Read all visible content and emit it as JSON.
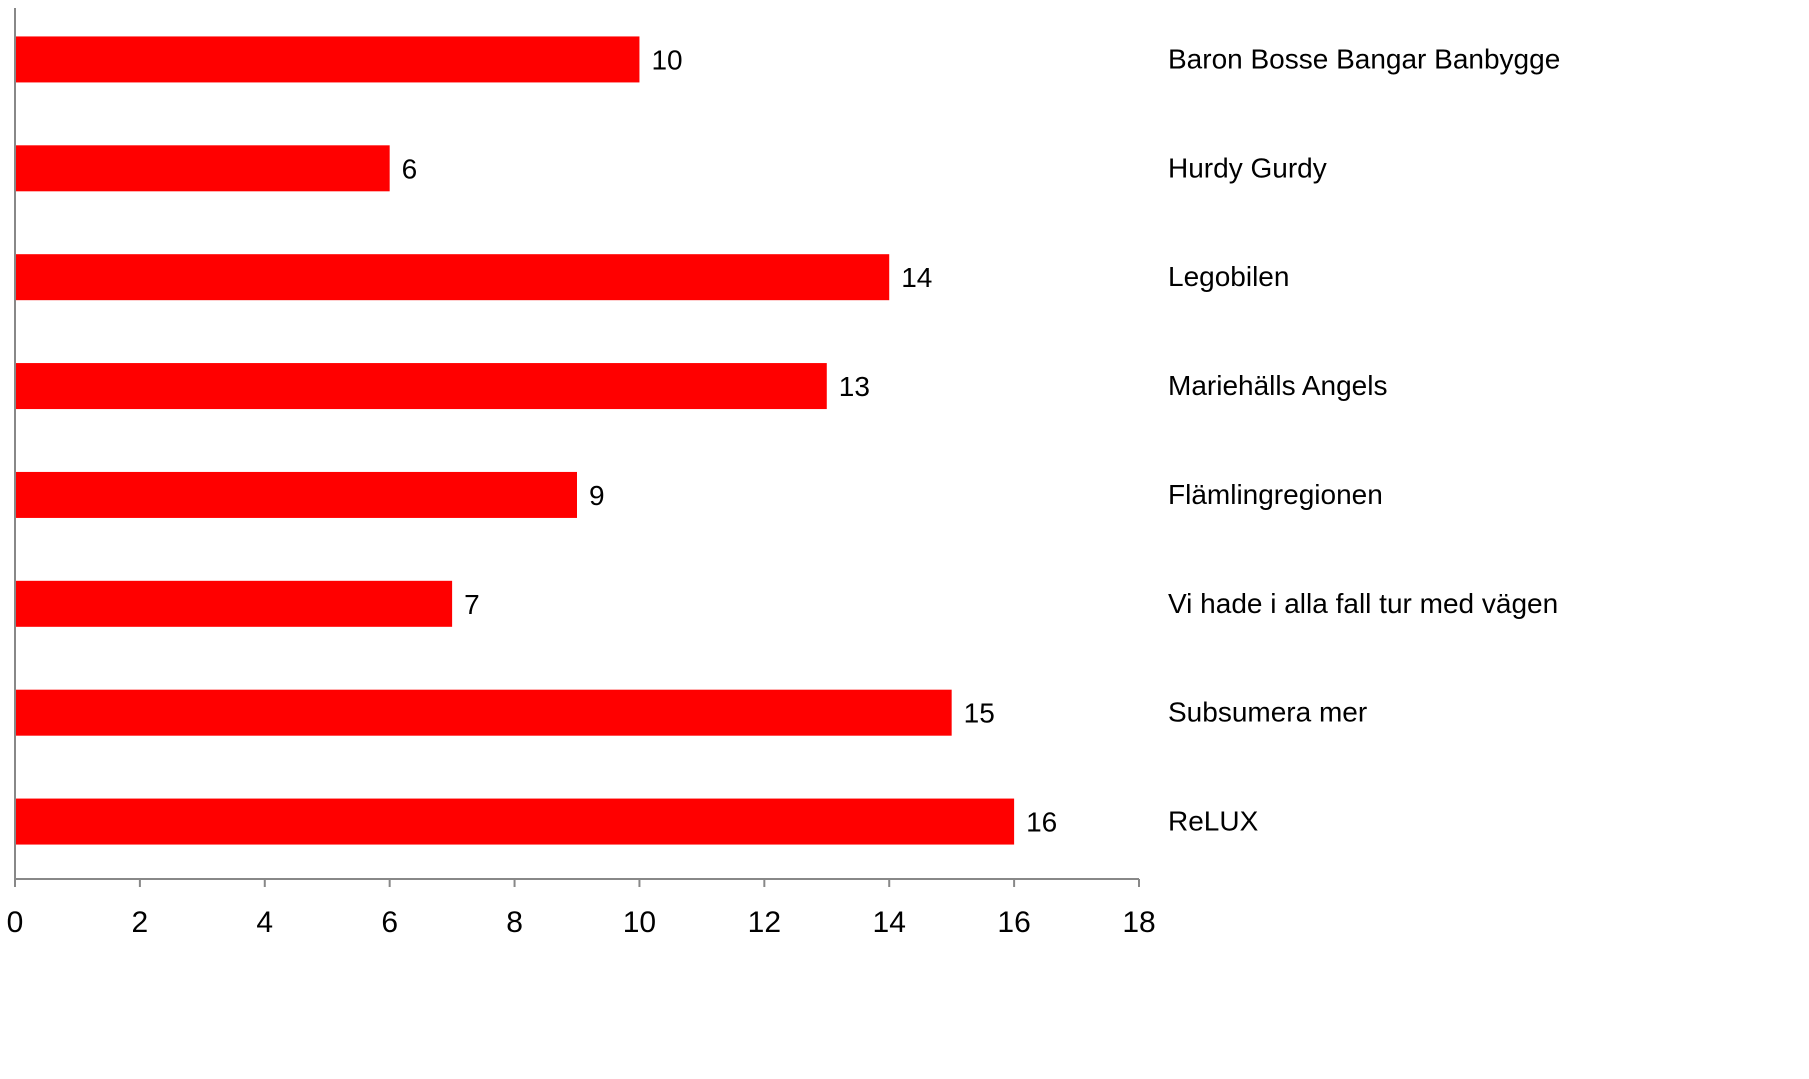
{
  "chart_data": {
    "type": "bar",
    "orientation": "horizontal",
    "categories": [
      "Baron Bosse Bangar Banbygge",
      "Hurdy Gurdy",
      "Legobilen",
      "Mariehälls Angels",
      "Flämlingregionen",
      "Vi hade i alla fall tur med vägen",
      "Subsumera mer",
      "ReLUX"
    ],
    "values": [
      10,
      6,
      14,
      13,
      9,
      7,
      15,
      16
    ],
    "xlim": [
      0,
      18
    ],
    "xticks": [
      0,
      2,
      4,
      6,
      8,
      10,
      12,
      14,
      16,
      18
    ],
    "title": "",
    "xlabel": "",
    "ylabel": "",
    "grid": false,
    "data_labels": true,
    "category_labels_position": "right",
    "bar_color": "#ff0000"
  }
}
